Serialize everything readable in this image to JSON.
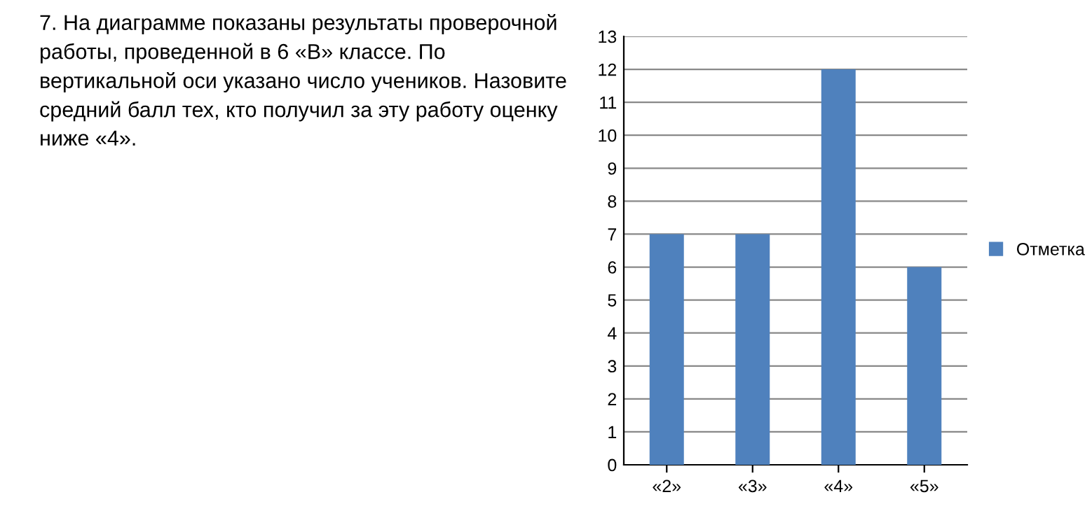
{
  "chart_data": {
    "type": "bar",
    "categories": [
      "«2»",
      "«3»",
      "«4»",
      "«5»"
    ],
    "series": [
      {
        "name": "Отметка",
        "color": "#4f81bd",
        "values": [
          7,
          7,
          12,
          6
        ]
      }
    ],
    "ylim": [
      0,
      13
    ],
    "yticks": [
      0,
      1,
      2,
      3,
      4,
      5,
      6,
      7,
      8,
      9,
      10,
      11,
      12,
      13
    ],
    "grid": "y",
    "legend": "right",
    "annotations": [
      "7. На диаграмме показаны результаты проверочной работы, проведенной в 6 «В» классе. По вертикальной оси указано число учеников. Назовите средний балл тех, кто получил за эту работу оценку ниже «4»."
    ]
  }
}
